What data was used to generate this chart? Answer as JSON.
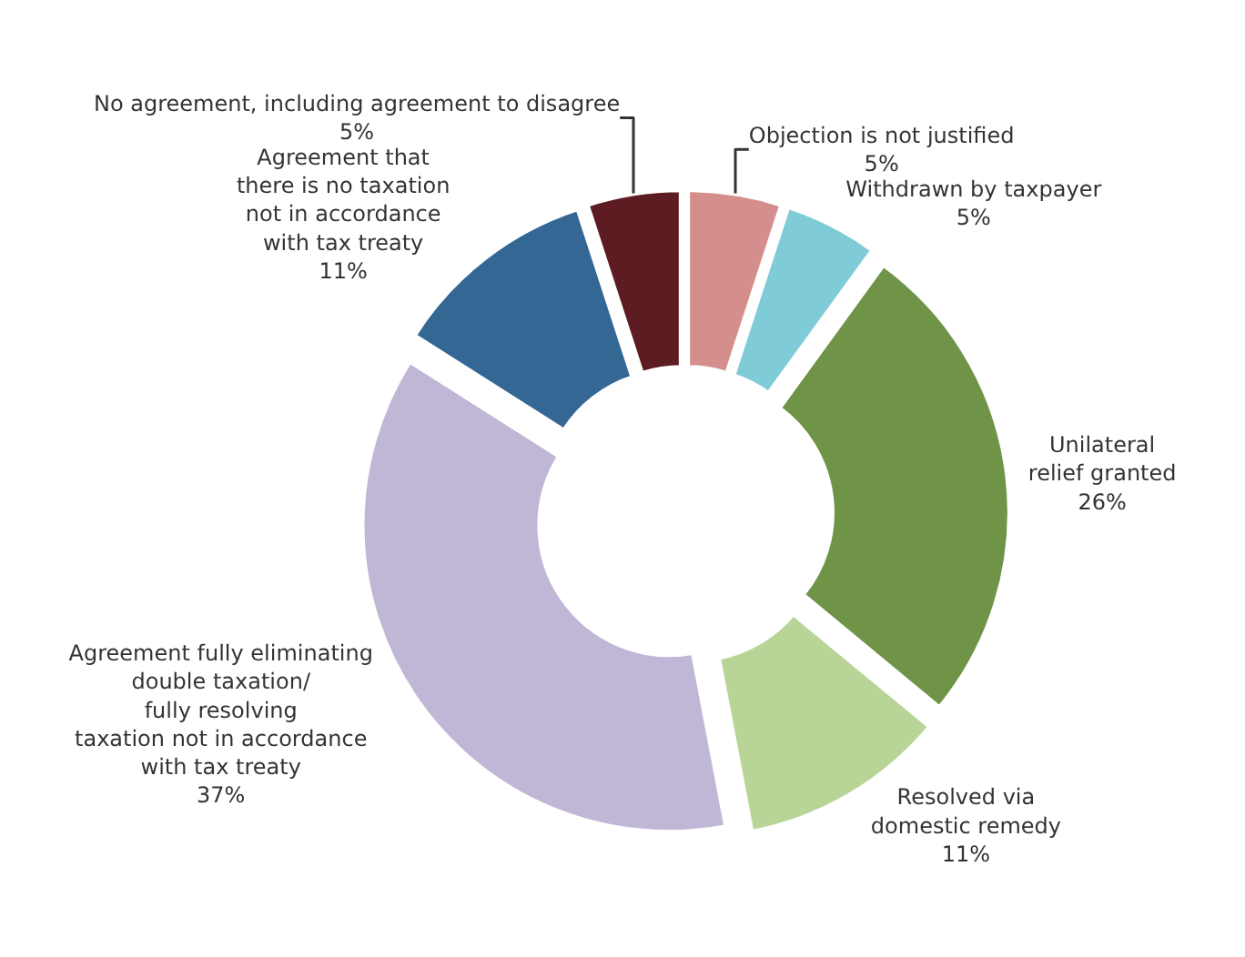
{
  "chart_data": {
    "type": "donut",
    "categories": [
      "Objection is not justified",
      "Withdrawn by taxpayer",
      "Unilateral\nrelief granted",
      "Resolved via\ndomestic remedy",
      "Agreement fully eliminating\ndouble taxation/\nfully resolving\ntaxation not in accordance\nwith tax treaty",
      "Agreement that\nthere is no taxation\nnot in accordance\nwith tax treaty",
      "No agreement, including agreement to disagree"
    ],
    "values": [
      5,
      5,
      26,
      11,
      37,
      11,
      5
    ],
    "colors": [
      "#d48f8d",
      "#7fcbd8",
      "#6f9447",
      "#b8d597",
      "#c0b6d5",
      "#356795",
      "#5d1c21"
    ],
    "value_labels": [
      "5%",
      "5%",
      "26%",
      "11%",
      "37%",
      "11%",
      "5%"
    ],
    "legend": false
  }
}
